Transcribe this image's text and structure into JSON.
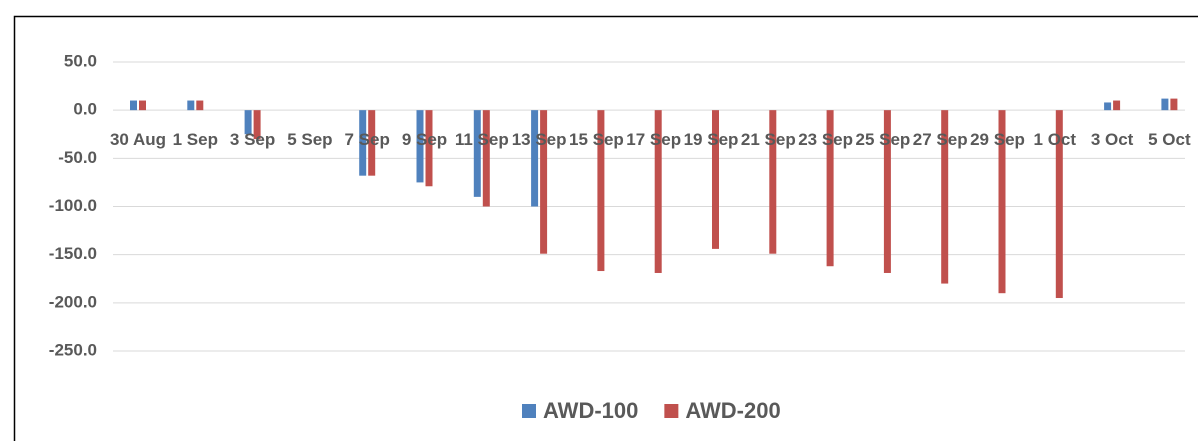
{
  "chart_data": {
    "type": "bar",
    "categories": [
      "30 Aug",
      "1 Sep",
      "3 Sep",
      "5 Sep",
      "7 Sep",
      "9 Sep",
      "11 Sep",
      "13 Sep",
      "15 Sep",
      "17 Sep",
      "19 Sep",
      "21 Sep",
      "23 Sep",
      "25 Sep",
      "27 Sep",
      "29 Sep",
      "1 Oct",
      "3 Oct",
      "5 Oct"
    ],
    "series": [
      {
        "name": "AWD-100",
        "color": "#4f81bd",
        "values": [
          10,
          10,
          -25,
          null,
          -68,
          -75,
          -90,
          -100,
          null,
          null,
          null,
          null,
          null,
          null,
          null,
          null,
          null,
          8,
          12
        ]
      },
      {
        "name": "AWD-200",
        "color": "#c0504d",
        "values": [
          10,
          10,
          -30,
          null,
          -68,
          -79,
          -100,
          -149,
          -167,
          -169,
          -144,
          -149,
          -162,
          -169,
          -180,
          -190,
          -195,
          10,
          12
        ]
      }
    ],
    "ylim": [
      -250,
      50
    ],
    "yticks": [
      {
        "value": 50,
        "label": "50.0"
      },
      {
        "value": 0,
        "label": "0.0"
      },
      {
        "value": -50,
        "label": "-50.0"
      },
      {
        "value": -100,
        "label": "-100.0"
      },
      {
        "value": -150,
        "label": "-150.0"
      },
      {
        "value": -200,
        "label": "-200.0"
      },
      {
        "value": -250,
        "label": "-250.0"
      }
    ],
    "grid": true,
    "legend": "bottom"
  }
}
